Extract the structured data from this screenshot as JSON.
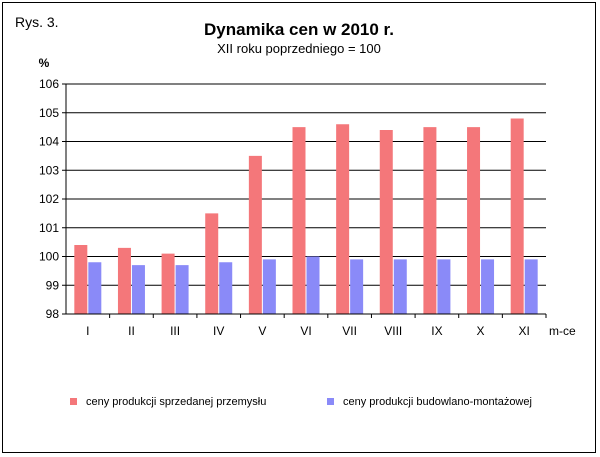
{
  "figure_label": "Rys. 3.",
  "chart_data": {
    "type": "bar",
    "title": "Dynamika cen w 2010 r.",
    "subtitle": "XII roku poprzedniego = 100",
    "ylabel": "%",
    "xlabel": "m-ce",
    "ylim": [
      98,
      106
    ],
    "yticks": [
      98,
      99,
      100,
      101,
      102,
      103,
      104,
      105,
      106
    ],
    "grid": true,
    "legend_position": "bottom",
    "categories": [
      "I",
      "II",
      "III",
      "IV",
      "V",
      "VI",
      "VII",
      "VIII",
      "IX",
      "X",
      "XI"
    ],
    "series": [
      {
        "name": "ceny produkcji sprzedanej przemysłu",
        "color": "#f4777a",
        "values": [
          100.4,
          100.3,
          100.1,
          101.5,
          103.5,
          104.5,
          104.6,
          104.4,
          104.5,
          104.5,
          104.8
        ]
      },
      {
        "name": "ceny produkcji budowlano-montażowej",
        "color": "#8a8af8",
        "values": [
          99.8,
          99.7,
          99.7,
          99.8,
          99.9,
          100.0,
          99.9,
          99.9,
          99.9,
          99.9,
          99.9
        ]
      }
    ]
  }
}
